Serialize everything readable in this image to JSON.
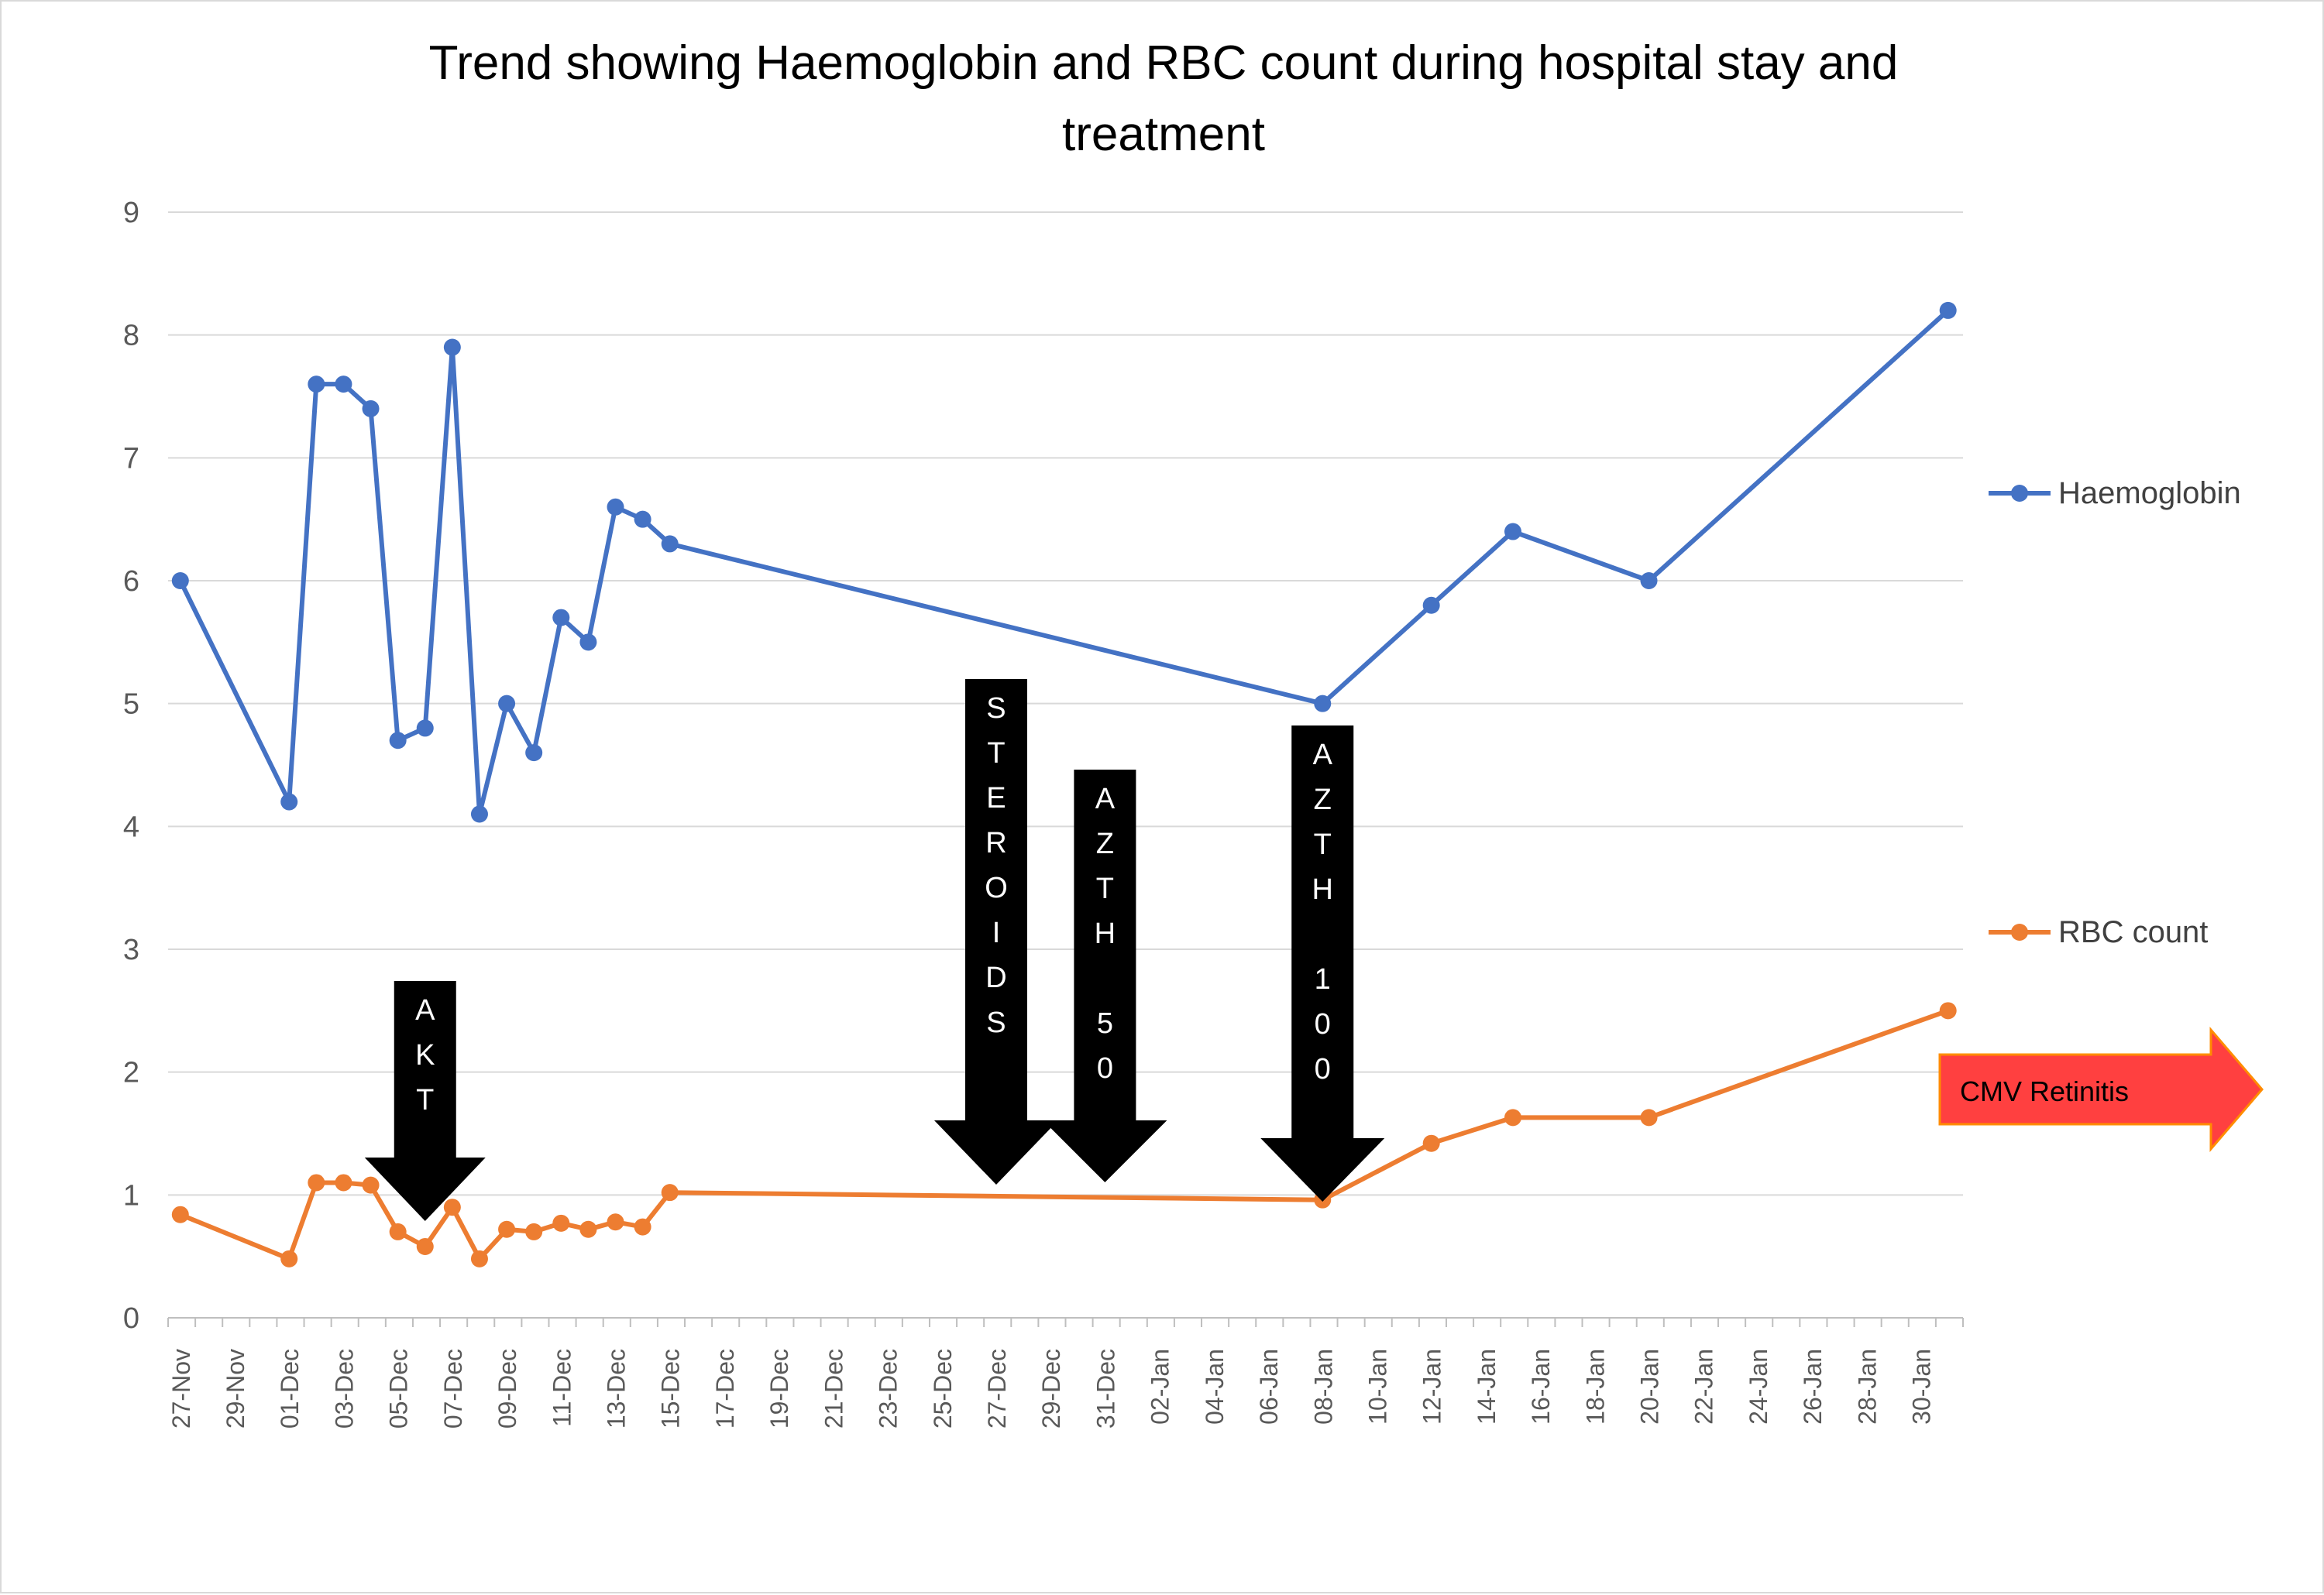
{
  "chart_data": {
    "type": "line",
    "title_lines": [
      "Trend showing Haemoglobin and RBC count during hospital stay and",
      "treatment"
    ],
    "xlabel": "",
    "ylabel": "",
    "ylim": [
      0,
      9
    ],
    "yticks": [
      0,
      1,
      2,
      3,
      4,
      5,
      6,
      7,
      8,
      9
    ],
    "x_axis_start": "27-Nov",
    "x_axis_end": "01-Feb",
    "x_tick_labels": [
      "27-Nov",
      "29-Nov",
      "01-Dec",
      "03-Dec",
      "05-Dec",
      "07-Dec",
      "09-Dec",
      "11-Dec",
      "13-Dec",
      "15-Dec",
      "17-Dec",
      "19-Dec",
      "21-Dec",
      "23-Dec",
      "25-Dec",
      "27-Dec",
      "29-Dec",
      "31-Dec",
      "02-Jan",
      "04-Jan",
      "06-Jan",
      "08-Jan",
      "10-Jan",
      "12-Jan",
      "14-Jan",
      "16-Jan",
      "18-Jan",
      "20-Jan",
      "22-Jan",
      "24-Jan",
      "26-Jan",
      "28-Jan",
      "30-Jan"
    ],
    "grid": true,
    "legend_position": "right",
    "series": [
      {
        "name": "Haemoglobin",
        "color": "#4472c4",
        "points": [
          {
            "date": "27-Nov",
            "value": 6.0
          },
          {
            "date": "01-Dec",
            "value": 4.2
          },
          {
            "date": "02-Dec",
            "value": 7.6
          },
          {
            "date": "03-Dec",
            "value": 7.6
          },
          {
            "date": "04-Dec",
            "value": 7.4
          },
          {
            "date": "05-Dec",
            "value": 4.7
          },
          {
            "date": "06-Dec",
            "value": 4.8
          },
          {
            "date": "07-Dec",
            "value": 7.9
          },
          {
            "date": "08-Dec",
            "value": 4.1
          },
          {
            "date": "09-Dec",
            "value": 5.0
          },
          {
            "date": "10-Dec",
            "value": 4.6
          },
          {
            "date": "11-Dec",
            "value": 5.7
          },
          {
            "date": "12-Dec",
            "value": 5.5
          },
          {
            "date": "13-Dec",
            "value": 6.6
          },
          {
            "date": "14-Dec",
            "value": 6.5
          },
          {
            "date": "15-Dec",
            "value": 6.3
          },
          {
            "date": "08-Jan",
            "value": 5.0
          },
          {
            "date": "12-Jan",
            "value": 5.8
          },
          {
            "date": "15-Jan",
            "value": 6.4
          },
          {
            "date": "20-Jan",
            "value": 6.0
          },
          {
            "date": "31-Jan",
            "value": 8.2
          }
        ]
      },
      {
        "name": "RBC count",
        "color": "#ed7d31",
        "points": [
          {
            "date": "27-Nov",
            "value": 0.84
          },
          {
            "date": "01-Dec",
            "value": 0.48
          },
          {
            "date": "02-Dec",
            "value": 1.1
          },
          {
            "date": "03-Dec",
            "value": 1.1
          },
          {
            "date": "04-Dec",
            "value": 1.08
          },
          {
            "date": "05-Dec",
            "value": 0.7
          },
          {
            "date": "06-Dec",
            "value": 0.58
          },
          {
            "date": "07-Dec",
            "value": 0.9
          },
          {
            "date": "08-Dec",
            "value": 0.48
          },
          {
            "date": "09-Dec",
            "value": 0.72
          },
          {
            "date": "10-Dec",
            "value": 0.7
          },
          {
            "date": "11-Dec",
            "value": 0.77
          },
          {
            "date": "12-Dec",
            "value": 0.72
          },
          {
            "date": "13-Dec",
            "value": 0.78
          },
          {
            "date": "14-Dec",
            "value": 0.74
          },
          {
            "date": "15-Dec",
            "value": 1.02
          },
          {
            "date": "08-Jan",
            "value": 0.96
          },
          {
            "date": "12-Jan",
            "value": 1.42
          },
          {
            "date": "15-Jan",
            "value": 1.63
          },
          {
            "date": "20-Jan",
            "value": 1.63
          },
          {
            "date": "31-Jan",
            "value": 2.5
          }
        ]
      }
    ],
    "annotations": [
      {
        "id": "akt",
        "label_chars": [
          "A",
          "K",
          "T"
        ],
        "date": "06-Dec",
        "color": "#000000"
      },
      {
        "id": "steroids",
        "label_chars": [
          "S",
          "T",
          "E",
          "R",
          "O",
          "I",
          "D",
          "S"
        ],
        "date": "27-Dec",
        "color": "#000000"
      },
      {
        "id": "azth50",
        "label_chars": [
          "A",
          "Z",
          "T",
          "H",
          "",
          "5",
          "0"
        ],
        "date": "31-Dec",
        "color": "#000000"
      },
      {
        "id": "azth100",
        "label_chars": [
          "A",
          "Z",
          "T",
          "H",
          "",
          "1",
          "0",
          "0"
        ],
        "date": "08-Jan",
        "color": "#000000"
      }
    ],
    "callout": {
      "label": "CMV Retinitis",
      "fill": "#ff4040",
      "border": "#ff8c00"
    }
  }
}
